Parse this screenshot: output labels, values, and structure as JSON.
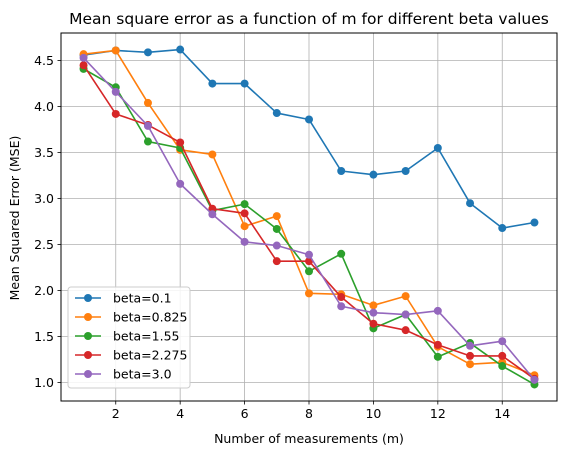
{
  "chart_data": {
    "type": "line",
    "title": "Mean square error as a function of m for different beta values",
    "xlabel": "Number of measurements (m)",
    "ylabel": "Mean Squared Error (MSE)",
    "xlim": [
      0.3,
      15.7
    ],
    "ylim": [
      0.8,
      4.8
    ],
    "xticks": [
      2,
      4,
      6,
      8,
      10,
      12,
      14
    ],
    "yticks": [
      1.0,
      1.5,
      2.0,
      2.5,
      3.0,
      3.5,
      4.0,
      4.5
    ],
    "grid": true,
    "legend_position": "lower-left",
    "x": [
      1,
      2,
      3,
      4,
      5,
      6,
      7,
      8,
      9,
      10,
      11,
      12,
      13,
      14,
      15
    ],
    "series": [
      {
        "name": "beta=0.1",
        "color": "#1f77b4",
        "values": [
          4.56,
          4.61,
          4.59,
          4.62,
          4.25,
          4.25,
          3.93,
          3.86,
          3.3,
          3.26,
          3.3,
          3.55,
          2.95,
          2.68,
          2.74
        ]
      },
      {
        "name": "beta=0.825",
        "color": "#ff7f0e",
        "values": [
          4.57,
          4.61,
          4.04,
          3.53,
          3.48,
          2.7,
          2.81,
          1.97,
          1.96,
          1.84,
          1.94,
          1.39,
          1.2,
          1.22,
          1.08
        ]
      },
      {
        "name": "beta=1.55",
        "color": "#2ca02c",
        "values": [
          4.41,
          4.21,
          3.62,
          3.55,
          2.87,
          2.94,
          2.67,
          2.21,
          2.4,
          1.59,
          1.74,
          1.28,
          1.43,
          1.18,
          0.98
        ]
      },
      {
        "name": "beta=2.275",
        "color": "#d62728",
        "values": [
          4.45,
          3.92,
          3.8,
          3.61,
          2.89,
          2.84,
          2.32,
          2.32,
          1.93,
          1.64,
          1.57,
          1.41,
          1.29,
          1.29,
          1.04
        ]
      },
      {
        "name": "beta=3.0",
        "color": "#9467bd",
        "values": [
          4.53,
          4.16,
          3.79,
          3.16,
          2.83,
          2.53,
          2.49,
          2.39,
          1.83,
          1.76,
          1.74,
          1.78,
          1.4,
          1.45,
          1.03
        ]
      }
    ]
  }
}
